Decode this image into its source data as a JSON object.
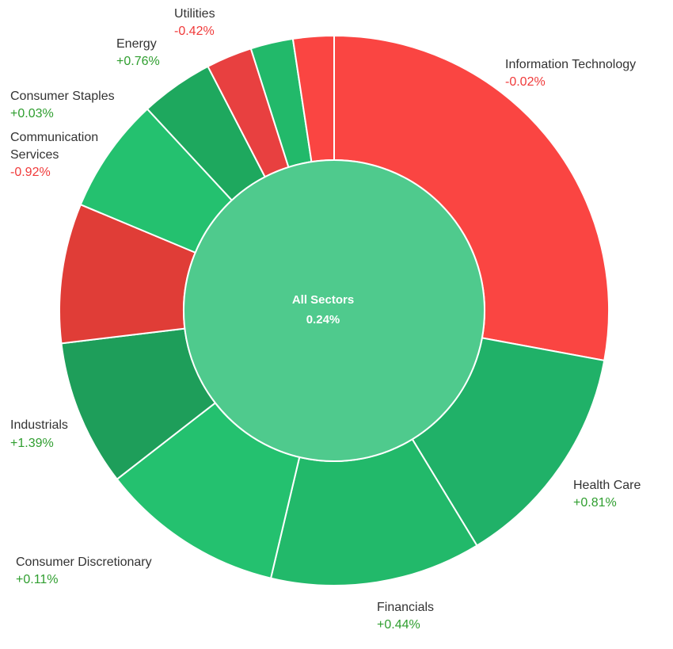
{
  "chart_data": {
    "type": "sunburst",
    "center": {
      "label": "All Sectors",
      "value": 0.24,
      "value_label": "0.24%",
      "color": "#4fca8d"
    },
    "categories": [
      "Information Technology",
      "Health Care",
      "Financials",
      "Consumer Discretionary",
      "Industrials",
      "Communication Services",
      "Consumer Staples",
      "Energy",
      "Utilities",
      null,
      null
    ],
    "values": [
      27.9,
      13.4,
      12.4,
      10.8,
      8.6,
      8.2,
      6.8,
      4.3,
      2.7,
      2.5,
      2.4
    ],
    "changes": [
      -0.02,
      0.81,
      0.44,
      0.11,
      1.39,
      -0.92,
      0.03,
      0.76,
      -0.42,
      null,
      null
    ],
    "change_labels": [
      "-0.02%",
      "+0.81%",
      "+0.44%",
      "+0.11%",
      "+1.39%",
      "-0.92%",
      "+0.03%",
      "+0.76%",
      "-0.42%",
      null,
      null
    ],
    "colors": [
      "#fa4542",
      "#20b168",
      "#22b96a",
      "#24c16f",
      "#1e9e5a",
      "#e03d37",
      "#24c16f",
      "#1ea85e",
      "#e84040",
      "#22b96a",
      "#fa4542"
    ],
    "positive_color": "#2f9e2f",
    "negative_color": "#f03a3a"
  }
}
